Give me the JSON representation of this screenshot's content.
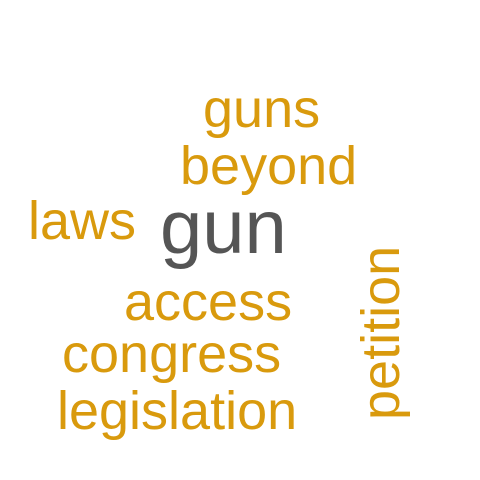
{
  "word_cloud": {
    "colors": {
      "primary": "#d99a0d",
      "highlight": "#555555"
    },
    "words": {
      "gun": "gun",
      "guns": "guns",
      "beyond": "beyond",
      "laws": "laws",
      "access": "access",
      "congress": "congress",
      "legislation": "legislation",
      "petition": "petition"
    }
  }
}
